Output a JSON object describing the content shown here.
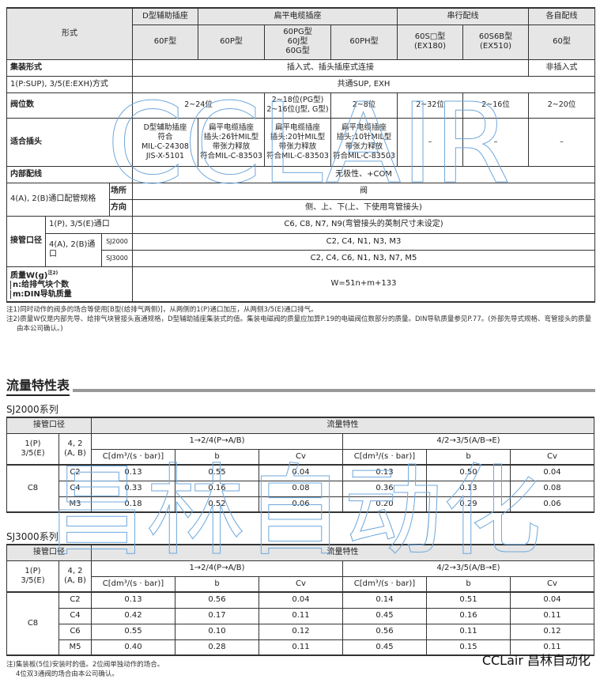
{
  "spec": {
    "header": {
      "form": "形式",
      "d_type": "D型辅助插座",
      "flat": "扁平电缆插座",
      "serial": "串行配线",
      "individual": "各自配线",
      "models": [
        "60F型",
        "60P型",
        "60PG型\n60J型\n60G型",
        "60PH型",
        "60S□型\n(EX180)",
        "60S6B型\n(EX510)",
        "60型"
      ]
    },
    "manifold": {
      "label": "集装形式",
      "plug": "插入式、插头插座式连接",
      "nonplug": "非插入式"
    },
    "supexh": {
      "label": "1(P:SUP), 3/5(E:EXH)方式",
      "value": "共通SUP, EXH"
    },
    "stations": {
      "label": "阀位数",
      "values": [
        "2~24位",
        "2~18位(PG型)\n2~16位(J型, G型)",
        "2~8位",
        "2~32位",
        "2~16位",
        "2~20位"
      ]
    },
    "connector": {
      "label": "适合插头",
      "values": [
        "D型辅助插座\n符合\nMIL-C-24308\nJIS-X-5101",
        "扁平电缆插座\n插头:26针MIL型\n带张力释放\n符合MIL-C-83503",
        "扁平电缆插座\n插头:20针MIL型\n带张力释放\n符合MIL-C-83503",
        "扁平电缆插座\n插头:10针MIL型\n带张力释放\n符合MIL-C-83503",
        "–",
        "–",
        "–"
      ]
    },
    "wiring": {
      "label": "内部配线",
      "value": "无极性、+COM"
    },
    "piping": {
      "label": "4(A), 2(B)通口配管规格",
      "location": "场所",
      "location_value": "阀",
      "direction": "方向",
      "direction_value": "侧、上、下(上、下使用弯管接头)"
    },
    "port": {
      "label": "接管口径",
      "p_label": "1(P), 3/5(E)通口",
      "p_value": "C6, C8, N7, N9(弯管接头的英制尺寸未设定)",
      "ab_label": "4(A), 2(B)通口",
      "sj2000": "SJ2000",
      "sj2000_value": "C2, C4, N1, N3, M3",
      "sj3000": "SJ3000",
      "sj3000_value": "C2, C4, C6, N1, N3, N7, M5"
    },
    "weight": {
      "label": "质量W(g)",
      "sup": "注2)",
      "n": "n:给排气块个数",
      "m": "m:DIN导轨质量",
      "value": "W=51n+m+133"
    }
  },
  "notes": [
    "注1)同时动作的阀多的场合等使用[B型(给排气两侧)]，从两侧的1(P)通口加压，从两侧3/5(E)通口排气。",
    "注2)质量W仅是内部先导、给排气块管接头直通规格，D型辅助插座集装式的值。集装电磁阀的质量应加算P.19的电磁阀位数部分的质量。DIN导轨质量参见P.77。(外部先导式规格、弯管接头的质量由本公司确认。)"
  ],
  "flow": {
    "title": "流量特性表",
    "headers": {
      "port": "接管口径",
      "flow": "流量特性",
      "p": "1(P)\n3/5(E)",
      "ab": "4, 2\n(A, B)",
      "dir1": "1→2/4(P→A/B)",
      "dir2": "4/2→3/5(A/B→E)",
      "c": "C[dm³/(s · bar)]",
      "b": "b",
      "cv": "Cv"
    },
    "tables": [
      {
        "title": "SJ2000系列",
        "p": "C8",
        "rows": [
          [
            "C2",
            "0.13",
            "0.55",
            "0.04",
            "0.13",
            "0.50",
            "0.04"
          ],
          [
            "C4",
            "0.33",
            "0.16",
            "0.08",
            "0.36",
            "0.13",
            "0.08"
          ],
          [
            "M3",
            "0.18",
            "0.52",
            "0.06",
            "0.20",
            "0.29",
            "0.06"
          ]
        ]
      },
      {
        "title": "SJ3000系列",
        "p": "C8",
        "rows": [
          [
            "C2",
            "0.13",
            "0.56",
            "0.04",
            "0.14",
            "0.51",
            "0.04"
          ],
          [
            "C4",
            "0.42",
            "0.17",
            "0.11",
            "0.45",
            "0.16",
            "0.11"
          ],
          [
            "C6",
            "0.55",
            "0.10",
            "0.12",
            "0.56",
            "0.11",
            "0.12"
          ],
          [
            "M5",
            "0.40",
            "0.28",
            "0.11",
            "0.45",
            "0.15",
            "0.11"
          ]
        ]
      }
    ],
    "notes": [
      "注)集装板(5位)安装时的值。2位阀单独动作的场合。",
      "4位双3通阀的场合由本公司确认。"
    ]
  },
  "watermark": {
    "top": "CCLAIR",
    "bottom": "昌林自动化",
    "logo": "CCLair 昌林自动化"
  }
}
